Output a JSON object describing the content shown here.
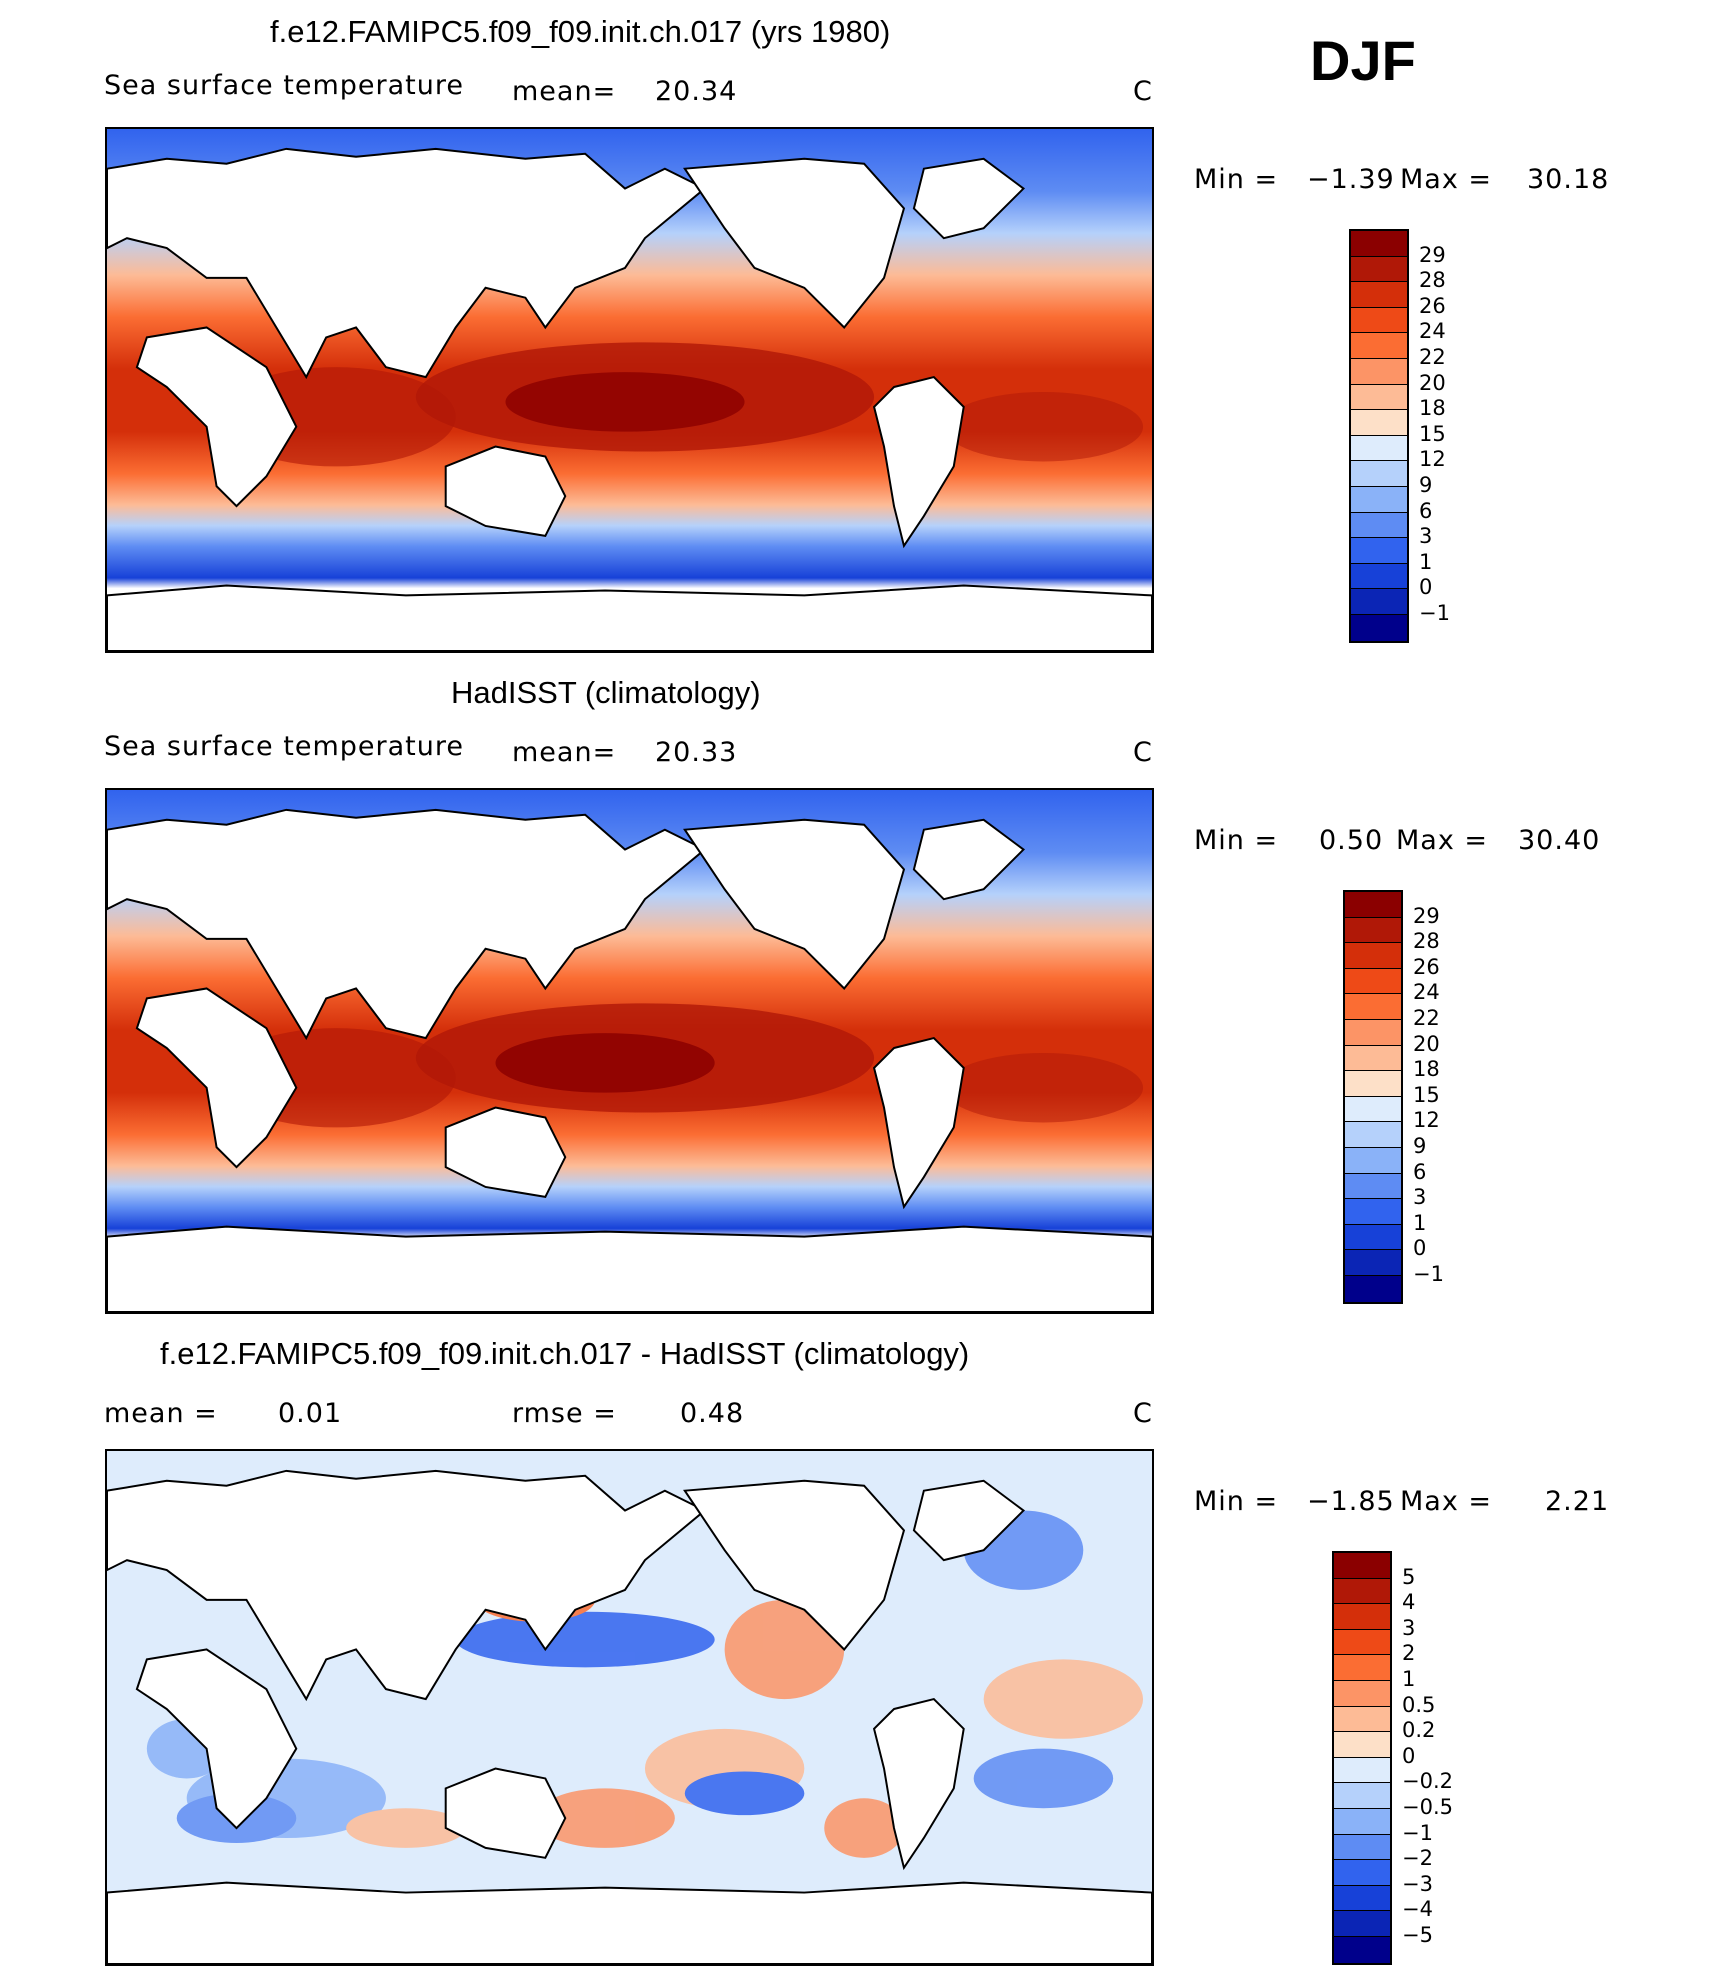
{
  "season": "DJF",
  "panels": [
    {
      "id": "model",
      "title": "f.e12.FAMIPC5.f09_f09.init.ch.017 (yrs 1980)",
      "field": "Sea surface temperature",
      "stat_label": "mean=",
      "stat_value": "20.34",
      "units": "C",
      "range": {
        "min_label": "Min =",
        "min": "−1.39",
        "max_label": "Max =",
        "max": "30.18"
      },
      "colorbar": {
        "levels": [
          "29",
          "28",
          "26",
          "24",
          "22",
          "20",
          "18",
          "15",
          "12",
          "9",
          "6",
          "3",
          "1",
          "0",
          "−1"
        ],
        "colors": [
          "#8b0000",
          "#b01807",
          "#d42f0a",
          "#ee4a17",
          "#fb6d33",
          "#fc9466",
          "#fdbb96",
          "#fde0c8",
          "#deecfc",
          "#b5d1fb",
          "#8ab2f8",
          "#5e8cf3",
          "#3163ee",
          "#1741d8",
          "#0b25b5",
          "#00008b"
        ]
      }
    },
    {
      "id": "obs",
      "title": "HadISST (climatology)",
      "field": "Sea surface temperature",
      "stat_label": "mean=",
      "stat_value": "20.33",
      "units": "C",
      "range": {
        "min_label": "Min =",
        "min": "0.50",
        "max_label": "Max =",
        "max": "30.40"
      },
      "colorbar": {
        "levels": [
          "29",
          "28",
          "26",
          "24",
          "22",
          "20",
          "18",
          "15",
          "12",
          "9",
          "6",
          "3",
          "1",
          "0",
          "−1"
        ],
        "colors": [
          "#8b0000",
          "#b01807",
          "#d42f0a",
          "#ee4a17",
          "#fb6d33",
          "#fc9466",
          "#fdbb96",
          "#fde0c8",
          "#deecfc",
          "#b5d1fb",
          "#8ab2f8",
          "#5e8cf3",
          "#3163ee",
          "#1741d8",
          "#0b25b5",
          "#00008b"
        ]
      }
    },
    {
      "id": "diff",
      "title": "f.e12.FAMIPC5.f09_f09.init.ch.017 - HadISST (climatology)",
      "mean_label": "mean =",
      "mean_value": "0.01",
      "rmse_label": "rmse =",
      "rmse_value": "0.48",
      "units": "C",
      "range": {
        "min_label": "Min =",
        "min": "−1.85",
        "max_label": "Max =",
        "max": "2.21"
      },
      "colorbar": {
        "levels": [
          "5",
          "4",
          "3",
          "2",
          "1",
          "0.5",
          "0.2",
          "0",
          "−0.2",
          "−0.5",
          "−1",
          "−2",
          "−3",
          "−4",
          "−5"
        ],
        "colors": [
          "#8b0000",
          "#b01807",
          "#d42f0a",
          "#ee4a17",
          "#fb6d33",
          "#fc9466",
          "#fdbb96",
          "#fde0c8",
          "#deecfc",
          "#b5d1fb",
          "#8ab2f8",
          "#5e8cf3",
          "#3163ee",
          "#1741d8",
          "#0b25b5",
          "#00008b"
        ]
      }
    }
  ]
}
